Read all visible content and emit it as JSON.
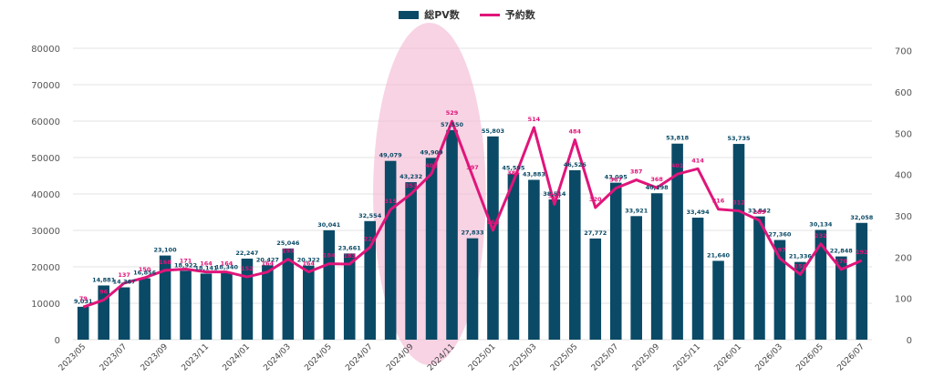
{
  "legend": {
    "bar_label": "総PV数",
    "line_label": "予約数"
  },
  "colors": {
    "bar": "#0a4a66",
    "line": "#e0157a",
    "highlight": "#f4b6d2"
  },
  "chart_data": {
    "type": "bar+line",
    "categories": [
      "2023/05",
      "2023/06",
      "2023/07",
      "2023/08",
      "2023/09",
      "2023/10",
      "2023/11",
      "2023/12",
      "2024/01",
      "2024/02",
      "2024/03",
      "2024/04",
      "2024/05",
      "2024/06",
      "2024/07",
      "2024/08",
      "2024/09",
      "2024/10",
      "2024/11",
      "2024/12",
      "2025/01",
      "2025/02",
      "2025/03",
      "2025/04",
      "2025/05",
      "2025/06",
      "2025/07",
      "2025/08",
      "2025/09",
      "2025/10",
      "2025/11",
      "2025/12",
      "2026/01",
      "2026/02",
      "2026/03",
      "2026/04",
      "2026/05",
      "2026/06",
      "2026/07"
    ],
    "x_tick_labels": [
      "2023/05",
      "2023/07",
      "2023/09",
      "2023/11",
      "2024/01",
      "2024/03",
      "2024/05",
      "2024/07",
      "2024/09",
      "2024/11",
      "2025/01",
      "2025/03",
      "2025/05",
      "2025/07",
      "2025/09",
      "2025/11",
      "2026/01",
      "2026/03",
      "2026/05",
      "2026/07"
    ],
    "series": [
      {
        "name": "総PV数",
        "axis": "left",
        "values": [
          9031,
          14881,
          14367,
          16856,
          23100,
          18922,
          18141,
          18340,
          22247,
          20427,
          25046,
          20322,
          30041,
          23661,
          32554,
          49079,
          43232,
          49909,
          57550,
          27833,
          55803,
          45595,
          43883,
          38514,
          46526,
          27772,
          43095,
          33921,
          40198,
          53818,
          33494,
          21640,
          53735,
          33842,
          27360,
          21336,
          30134,
          22848,
          32058
        ],
        "labels": [
          "9,031",
          "14,881",
          "14,367",
          "16,856",
          "23,100",
          "18,922",
          "18,141",
          "18,340",
          "22,247",
          "20,427",
          "25,046",
          "20,322",
          "30,041",
          "23,661",
          "32,554",
          "49,079",
          "43,232",
          "49,909",
          "57,550",
          "27,833",
          "55,803",
          "45,595",
          "43,883",
          "38,514",
          "46,526",
          "27,772",
          "43,095",
          "33,921",
          "40,198",
          "53,818",
          "33,494",
          "21,640",
          "53,735",
          "33,842",
          "27,360",
          "21,336",
          "30,134",
          "22,848",
          "32,058"
        ]
      },
      {
        "name": "予約数",
        "axis": "right",
        "values": [
          79,
          96,
          137,
          150,
          168,
          171,
          164,
          164,
          152,
          164,
          195,
          164,
          184,
          183,
          224,
          315,
          353,
          402,
          529,
          397,
          265,
          384,
          514,
          328,
          484,
          320,
          367,
          387,
          368,
          401,
          414,
          316,
          312,
          289,
          197,
          158,
          232,
          170,
          192
        ],
        "labels": [
          "79",
          "96",
          "137",
          "150",
          "168",
          "171",
          "164",
          "164",
          "152",
          "164",
          "195",
          "164",
          "184",
          "183",
          "224",
          "315",
          "353",
          "402",
          "529",
          "397",
          "265",
          "384",
          "514",
          "328",
          "484",
          "320",
          "367",
          "387",
          "368",
          "401",
          "414",
          "316",
          "312",
          "289",
          "197",
          "158",
          "232",
          "170",
          "192"
        ]
      }
    ],
    "y_left": {
      "min": 0,
      "max": 85000,
      "ticks": [
        "0",
        "10000",
        "20000",
        "30000",
        "40000",
        "50000",
        "60000",
        "70000",
        "80000"
      ],
      "tick_values": [
        0,
        10000,
        20000,
        30000,
        40000,
        50000,
        60000,
        70000,
        80000
      ]
    },
    "y_right": {
      "min": 0,
      "max": 750,
      "ticks": [
        "0",
        "100",
        "200",
        "300",
        "400",
        "500",
        "600",
        "700"
      ],
      "tick_values": [
        0,
        100,
        200,
        300,
        400,
        500,
        600,
        700
      ]
    },
    "highlight_range": [
      "2024/08",
      "2024/12"
    ],
    "grid": true,
    "legend_position": "top-center"
  }
}
